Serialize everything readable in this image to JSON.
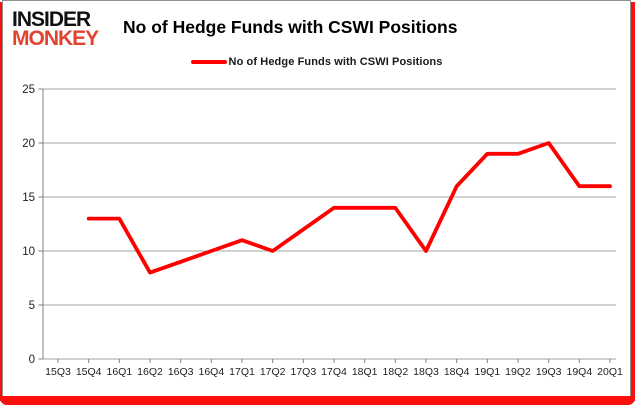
{
  "logo": {
    "line1": "INSIDER",
    "line2": "MONKEY",
    "accent_color": "#e2432f"
  },
  "title": "No of Hedge Funds with CSWI Positions",
  "legend": {
    "label": "No of Hedge Funds with CSWI Positions",
    "color": "#ff0000"
  },
  "frame": {
    "border_color": "#fa100b"
  },
  "chart_data": {
    "type": "line",
    "title": "No of Hedge Funds with CSWI Positions",
    "categories": [
      "15Q3",
      "15Q4",
      "16Q1",
      "16Q2",
      "16Q3",
      "16Q4",
      "17Q1",
      "17Q2",
      "17Q3",
      "17Q4",
      "18Q1",
      "18Q2",
      "18Q3",
      "18Q4",
      "19Q1",
      "19Q2",
      "19Q3",
      "19Q4",
      "20Q1"
    ],
    "series": [
      {
        "name": "No of Hedge Funds with CSWI Positions",
        "color": "#ff0000",
        "values": [
          null,
          13,
          13,
          8,
          9,
          10,
          11,
          10,
          12,
          14,
          14,
          14,
          10,
          16,
          19,
          19,
          20,
          16,
          16
        ]
      }
    ],
    "xlabel": "",
    "ylabel": "",
    "ylim": [
      0,
      25
    ],
    "yticks": [
      0,
      5,
      10,
      15,
      20,
      25
    ],
    "grid": true,
    "legend_position": "top-center",
    "gridline_color": "#a6a6a6",
    "axis_color": "#808080",
    "label_color": "#1f1f1f"
  }
}
